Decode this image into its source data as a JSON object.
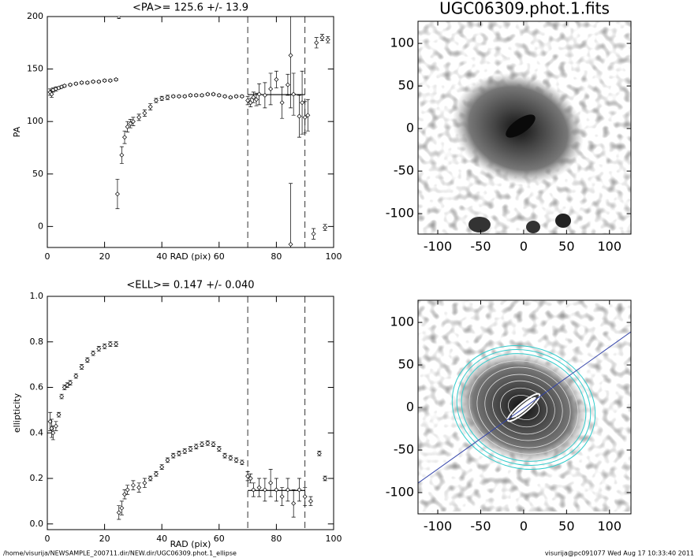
{
  "chart_data": [
    {
      "type": "scatter",
      "title": "<PA>= 125.6 +/-  13.9",
      "xlabel": "RAD (pix)",
      "ylabel": "PA",
      "xlim": [
        0,
        100
      ],
      "ylim": [
        -20,
        200
      ],
      "xticks": [
        0,
        20,
        40,
        60,
        80,
        100
      ],
      "yticks": [
        0,
        50,
        100,
        150,
        200
      ],
      "x": [
        1,
        1.5,
        2,
        3,
        4,
        5,
        6,
        8,
        10,
        12,
        14,
        16,
        18,
        20,
        22,
        24,
        24.5,
        25,
        26,
        27,
        28,
        29,
        30,
        32,
        34,
        36,
        38,
        40,
        42,
        44,
        46,
        48,
        50,
        52,
        54,
        56,
        58,
        60,
        62,
        64,
        66,
        68,
        70,
        71,
        72,
        73,
        74,
        76,
        78,
        80,
        82,
        84,
        85,
        86,
        88,
        89,
        90,
        91,
        85,
        93,
        94,
        96,
        97,
        98
      ],
      "values": [
        128,
        126,
        130,
        131,
        132,
        133,
        134,
        135,
        136,
        137,
        137,
        138,
        138,
        139,
        139,
        140,
        31,
        200,
        68,
        85,
        95,
        98,
        100,
        104,
        108,
        114,
        120,
        122,
        123,
        124,
        124,
        124,
        125,
        125,
        125,
        126,
        126,
        125,
        124,
        123,
        124,
        124,
        120,
        118,
        123,
        121,
        126,
        125,
        131,
        140,
        118,
        135,
        163,
        126,
        105,
        118,
        104,
        106,
        -17,
        -7,
        175,
        180,
        -1,
        178
      ],
      "errors": [
        3,
        3,
        2,
        2,
        1,
        1,
        1,
        1,
        1,
        1,
        1,
        1,
        1,
        1,
        1,
        1,
        14,
        2,
        8,
        6,
        5,
        4,
        4,
        3,
        3,
        3,
        2,
        2,
        2,
        1,
        1,
        1,
        1,
        1,
        1,
        1,
        1,
        1,
        1,
        1,
        1,
        1,
        4,
        4,
        5,
        6,
        10,
        12,
        15,
        8,
        15,
        10,
        50,
        20,
        20,
        30,
        15,
        15,
        58,
        5,
        5,
        3,
        3,
        3
      ],
      "vlines": [
        70,
        90
      ],
      "mean_line": {
        "y": 125.6,
        "x": [
          70,
          90
        ]
      }
    },
    {
      "type": "scatter",
      "title": "<ELL>= 0.147 +/-  0.040",
      "xlabel": "RAD (pix)",
      "ylabel": "ellipticity",
      "xlim": [
        0,
        100
      ],
      "ylim": [
        -0.025,
        1.0
      ],
      "xticks": [
        0,
        20,
        40,
        60,
        80,
        100
      ],
      "yticks": [
        {
          "value": 0,
          "label": "0.0"
        },
        0.2,
        0.4,
        0.6,
        0.8,
        {
          "value": 1,
          "label": "1.0"
        }
      ],
      "x": [
        1,
        1.5,
        2,
        3,
        4,
        5,
        6,
        7,
        8,
        10,
        12,
        14,
        16,
        18,
        20,
        22,
        24,
        25,
        26,
        27,
        28,
        30,
        32,
        34,
        36,
        38,
        40,
        42,
        44,
        46,
        48,
        50,
        52,
        54,
        56,
        58,
        60,
        62,
        64,
        66,
        68,
        70,
        71,
        72,
        74,
        76,
        78,
        80,
        82,
        84,
        86,
        88,
        90,
        92,
        95,
        97
      ],
      "values": [
        0.45,
        0.42,
        0.4,
        0.43,
        0.48,
        0.56,
        0.6,
        0.61,
        0.62,
        0.65,
        0.69,
        0.72,
        0.75,
        0.77,
        0.78,
        0.79,
        0.79,
        0.05,
        0.07,
        0.13,
        0.15,
        0.17,
        0.16,
        0.18,
        0.2,
        0.22,
        0.25,
        0.28,
        0.3,
        0.31,
        0.32,
        0.33,
        0.34,
        0.35,
        0.355,
        0.35,
        0.33,
        0.3,
        0.29,
        0.28,
        0.27,
        0.21,
        0.2,
        0.15,
        0.16,
        0.15,
        0.18,
        0.15,
        0.12,
        0.15,
        0.09,
        0.15,
        0.12,
        0.1,
        0.31,
        0.2
      ],
      "errors": [
        0.04,
        0.04,
        0.03,
        0.02,
        0.01,
        0.01,
        0.01,
        0.01,
        0.01,
        0.01,
        0.01,
        0.01,
        0.01,
        0.01,
        0.01,
        0.01,
        0.01,
        0.03,
        0.03,
        0.02,
        0.02,
        0.02,
        0.02,
        0.02,
        0.01,
        0.01,
        0.01,
        0.01,
        0.01,
        0.01,
        0.01,
        0.01,
        0.01,
        0.01,
        0.01,
        0.01,
        0.01,
        0.01,
        0.01,
        0.01,
        0.01,
        0.02,
        0.02,
        0.03,
        0.04,
        0.05,
        0.06,
        0.05,
        0.04,
        0.05,
        0.06,
        0.05,
        0.04,
        0.02,
        0.01,
        0.01
      ],
      "vlines": [
        70,
        90
      ],
      "mean_line": {
        "y": 0.147,
        "x": [
          70,
          90
        ]
      }
    },
    {
      "type": "image",
      "title": "UGC06309.phot.1.fits",
      "xlim": [
        -123,
        125
      ],
      "ylim": [
        -124,
        126
      ],
      "xticks": [
        -100,
        -50,
        0,
        50,
        100
      ],
      "yticks": [
        -100,
        -50,
        0,
        50,
        100
      ]
    },
    {
      "type": "image",
      "xlim": [
        -123,
        125
      ],
      "ylim": [
        -125,
        126
      ],
      "xticks": [
        -100,
        -50,
        0,
        50,
        100
      ],
      "yticks": [
        -100,
        -50,
        0,
        50,
        100
      ]
    }
  ],
  "footer": {
    "left": "/home/visurija/NEWSAMPLE_200711.dir/NEW.dir/UGC06309.phot.1_ellipse",
    "right": "visurija@pc091077  Wed Aug 17 10:33:40 2011"
  }
}
